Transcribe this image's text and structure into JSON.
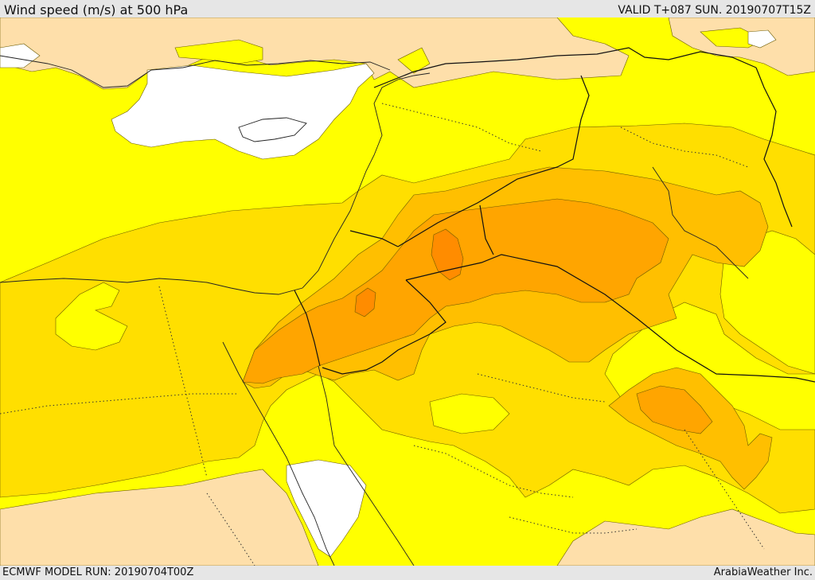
{
  "header": {
    "title": "Wind speed (m/s) at 500 hPa",
    "valid_time": "VALID T+087 SUN. 20190707T15Z"
  },
  "footer": {
    "model_run": "ECMWF MODEL RUN: 20190704T00Z",
    "credit": "ArabiaWeather Inc."
  },
  "colors": {
    "wind_very_low": "#ffffff",
    "wind_low": "#fedfaa",
    "wind_moderate": "#ffff00",
    "wind_fresh": "#ffdf00",
    "wind_strong": "#ffbf00",
    "wind_very_strong": "#ffa500",
    "wind_max": "#ff8c00"
  }
}
